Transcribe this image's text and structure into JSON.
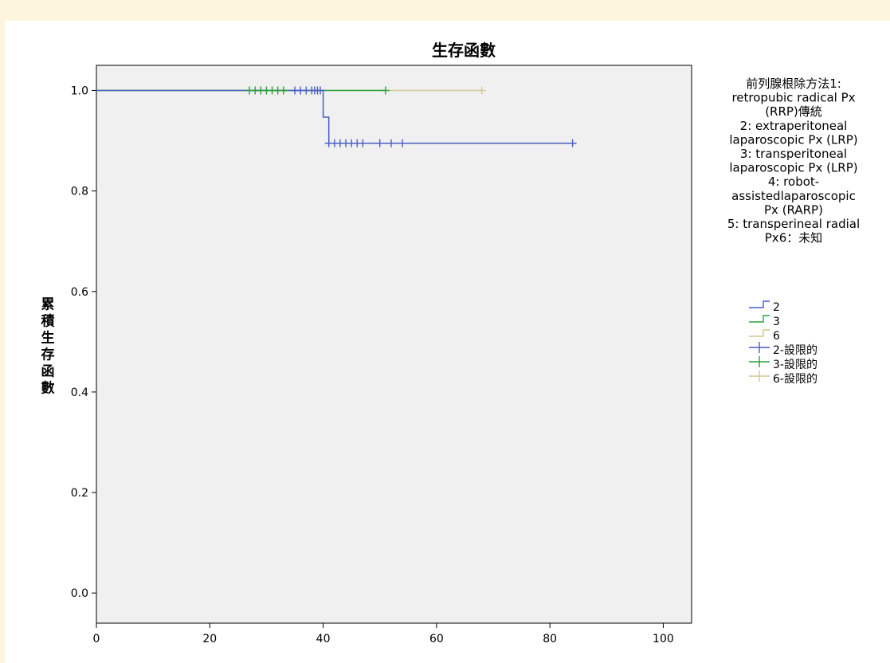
{
  "chart_data": {
    "type": "line",
    "title": "生存函數",
    "ylabel": "累積生存函數",
    "xlabel": "",
    "xlim": [
      0,
      105
    ],
    "ylim": [
      -0.06,
      1.05
    ],
    "xticks": [
      0,
      20,
      40,
      60,
      80,
      100
    ],
    "yticks": [
      0.0,
      0.2,
      0.4,
      0.6,
      0.8,
      1.0
    ],
    "xtick_labels": [
      "0",
      "20",
      "40",
      "60",
      "80",
      "100"
    ],
    "ytick_labels": [
      "0.0",
      "0.2",
      "0.4",
      "0.6",
      "0.8",
      "1.0"
    ],
    "grid": false,
    "legend_position": "right",
    "legend_title_lines": [
      "前列腺根除方法1:",
      "retropubic radical Px",
      "(RRP)傳統",
      "2: extraperitoneal",
      "laparoscopic Px (LRP)",
      "3: transperitoneal",
      "laparoscopic Px (LRP)",
      "4: robot-",
      "assistedlaparoscopic",
      "Px (RARP)",
      "5: transperineal radial",
      "Px6：未知"
    ],
    "series": [
      {
        "name": "2",
        "color": "#4a5fc1",
        "steps": [
          [
            0,
            1.0
          ],
          [
            40,
            1.0
          ],
          [
            40,
            0.947
          ],
          [
            41,
            0.947
          ],
          [
            41,
            0.895
          ],
          [
            84,
            0.895
          ]
        ],
        "censored_name": "2-設限的",
        "censored_x": [
          35,
          36,
          37,
          38,
          38.5,
          39,
          39.5,
          41,
          42,
          43,
          44,
          45,
          46,
          47,
          50,
          52,
          54,
          84
        ]
      },
      {
        "name": "3",
        "color": "#2aa03c",
        "steps": [
          [
            0,
            1.0
          ],
          [
            51,
            1.0
          ]
        ],
        "censored_name": "3-設限的",
        "censored_x": [
          27,
          28,
          29,
          30,
          31,
          32,
          33,
          51
        ]
      },
      {
        "name": "6",
        "color": "#d2c98e",
        "steps": [
          [
            0,
            1.0
          ],
          [
            68,
            1.0
          ]
        ],
        "censored_name": "6-設限的",
        "censored_x": [
          68
        ]
      }
    ]
  }
}
